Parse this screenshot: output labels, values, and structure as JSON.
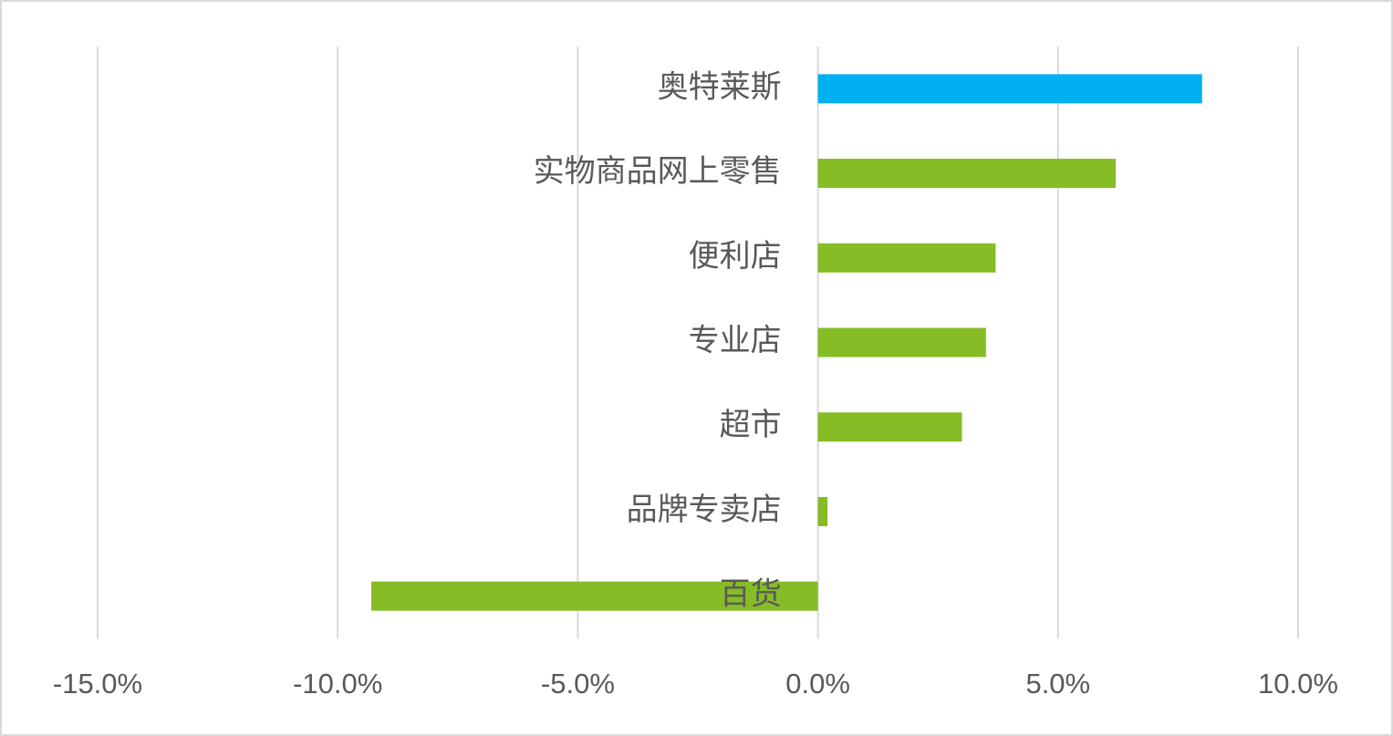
{
  "chart_data": {
    "type": "barh",
    "categories": [
      "奥特莱斯",
      "实物商品网上零售",
      "便利店",
      "专业店",
      "超市",
      "品牌专卖店",
      "百货"
    ],
    "values": [
      8.0,
      6.2,
      3.7,
      3.5,
      3.0,
      0.2,
      -9.3
    ],
    "colors": [
      "#00b0f0",
      "#86bc25",
      "#86bc25",
      "#86bc25",
      "#86bc25",
      "#86bc25",
      "#86bc25"
    ],
    "xlim": [
      -15,
      10
    ],
    "xticks": [
      {
        "value": -15,
        "label": "-15.0%"
      },
      {
        "value": -10,
        "label": "-10.0%"
      },
      {
        "value": -5,
        "label": "-5.0%"
      },
      {
        "value": 0,
        "label": "0.0%"
      },
      {
        "value": 5,
        "label": "5.0%"
      },
      {
        "value": 10,
        "label": "10.0%"
      }
    ],
    "grid": true
  }
}
